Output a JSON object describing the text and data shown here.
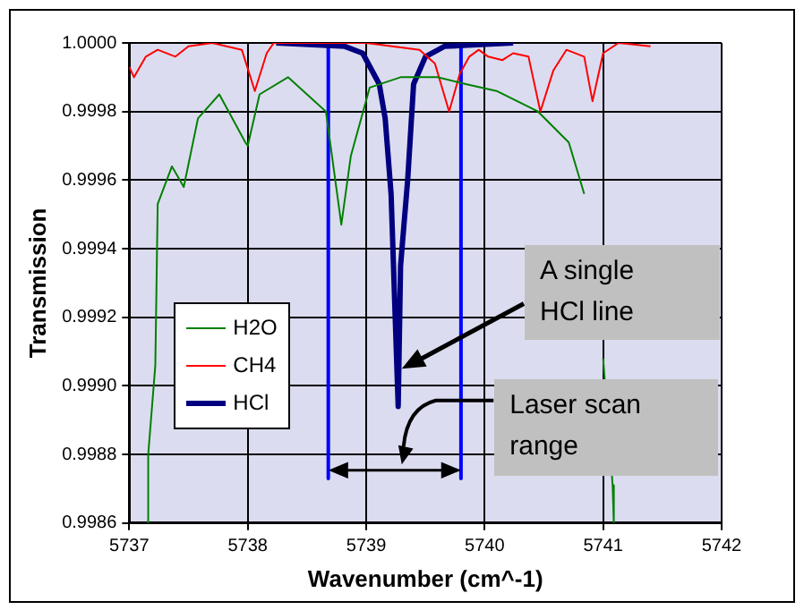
{
  "chart_data": {
    "type": "line",
    "xlabel": "Wavenumber (cm^-1)",
    "ylabel": "Transmission",
    "xlim": [
      5737,
      5742
    ],
    "xticks": [
      5737,
      5738,
      5739,
      5740,
      5741,
      5742
    ],
    "ylim": [
      0.9986,
      1.0
    ],
    "yticks": [
      {
        "value": 0.9986,
        "label": "0.9986"
      },
      {
        "value": 0.9988,
        "label": "0.9988"
      },
      {
        "value": 0.999,
        "label": "0.9990"
      },
      {
        "value": 0.9992,
        "label": "0.9992"
      },
      {
        "value": 0.9994,
        "label": "0.9994"
      },
      {
        "value": 0.9996,
        "label": "0.9996"
      },
      {
        "value": 0.9998,
        "label": "0.9998"
      },
      {
        "value": 1.0,
        "label": "1.0000"
      }
    ],
    "grid": true,
    "legend": "left",
    "marker": "none",
    "line_style": "solid",
    "series": [
      {
        "name": "H2O",
        "color": "#008000",
        "x": [
          5737.15,
          5737.16,
          5737.22,
          5737.24,
          5737.36,
          5737.46,
          5737.58,
          5737.76,
          5737.98,
          5738.0,
          5738.1,
          5738.34,
          5738.66,
          5738.79,
          5738.87,
          5739.03,
          5739.29,
          5739.6,
          5739.84,
          5740.1,
          5740.45,
          5740.71,
          5740.84,
          5740.94,
          5741.0,
          5741.08,
          5741.09
        ],
        "values": [
          0.9986,
          0.9988,
          0.99906,
          0.99953,
          0.99964,
          0.99958,
          0.99978,
          0.99985,
          0.99971,
          0.9997,
          0.99985,
          0.9999,
          0.9998,
          0.99947,
          0.99967,
          0.99987,
          0.9999,
          0.9999,
          0.99988,
          0.99986,
          0.9998,
          0.99971,
          0.99956,
          null,
          0.99908,
          0.99871,
          0.9986
        ]
      },
      {
        "name": "CH4",
        "color": "#ff0000",
        "x": [
          5737,
          5737.04,
          5737.14,
          5737.24,
          5737.39,
          5737.5,
          5737.7,
          5737.95,
          5738.06,
          5738.16,
          5738.22,
          5739.0,
          5739.45,
          5739.58,
          5739.7,
          5739.79,
          5739.87,
          5739.95,
          5740.03,
          5740.15,
          5740.24,
          5740.37,
          5740.47,
          5740.58,
          5740.69,
          5740.84,
          5740.91,
          5741.0,
          5741.13,
          5741.4
        ],
        "values": [
          0.99993,
          0.9999,
          0.99996,
          0.99998,
          0.99996,
          0.99999,
          1.0,
          0.99998,
          0.99986,
          0.99997,
          1.0,
          1.0,
          0.99998,
          0.99994,
          0.9998,
          0.99991,
          0.99996,
          0.99998,
          0.99996,
          0.99995,
          0.99997,
          0.99996,
          0.9998,
          0.99992,
          0.99998,
          0.99996,
          0.99983,
          0.99997,
          1.0,
          0.99999
        ]
      },
      {
        "name": "HCl",
        "color": "#000080",
        "x": [
          5738.24,
          5738.82,
          5738.97,
          5739.11,
          5739.16,
          5739.21,
          5739.27,
          5739.29,
          5739.35,
          5739.4,
          5739.5,
          5739.66,
          5740.24
        ],
        "values": [
          1.0,
          0.99999,
          0.99997,
          0.99988,
          0.99978,
          0.99956,
          0.99894,
          0.99935,
          0.9996,
          0.99988,
          0.99996,
          0.99999,
          1.0
        ]
      },
      {
        "color": "#0000ff",
        "x": [
          5738.68,
          5738.68
        ],
        "values": [
          1.0,
          0.99873
        ]
      },
      {
        "color": "#0000ff",
        "x": [
          5739.8,
          5739.8
        ],
        "values": [
          1.0,
          0.99873
        ]
      }
    ],
    "annotations": [
      {
        "text": "A single HCl line",
        "x": 5739.3,
        "y": 0.99905
      },
      "Laser scan range"
    ]
  }
}
